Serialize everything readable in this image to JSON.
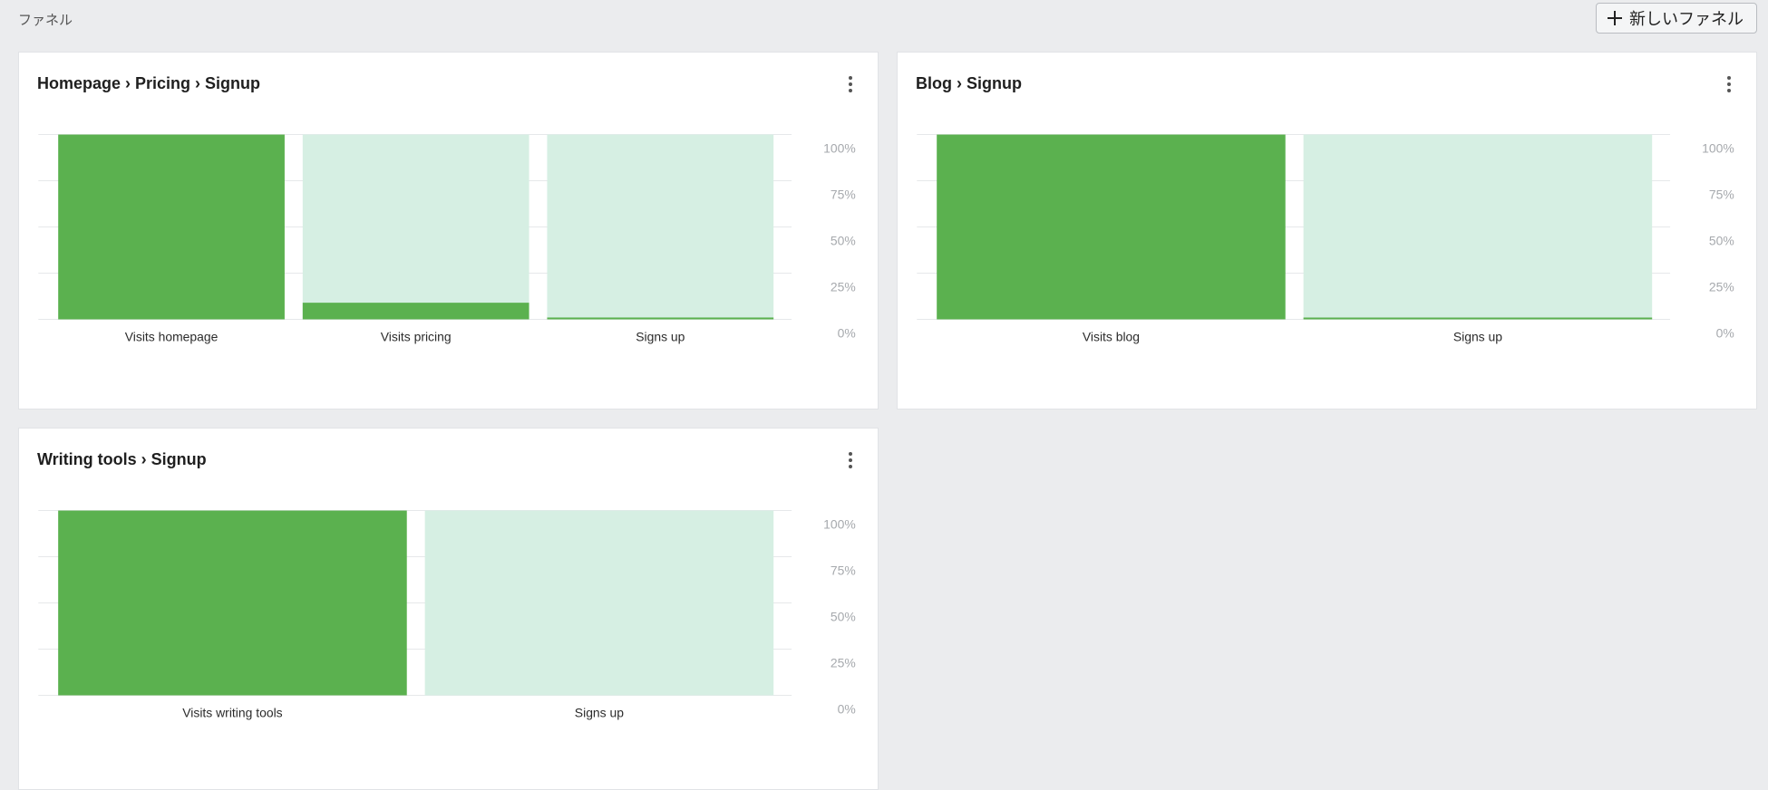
{
  "header": {
    "title": "ファネル",
    "new_button_label": "新しいファネル"
  },
  "funnels": [
    {
      "title": "Homepage › Pricing › Signup",
      "steps": [
        {
          "label": "Visits homepage",
          "value": 100
        },
        {
          "label": "Visits pricing",
          "value": 9
        },
        {
          "label": "Signs up",
          "value": 1
        }
      ]
    },
    {
      "title": "Blog › Signup",
      "steps": [
        {
          "label": "Visits blog",
          "value": 100
        },
        {
          "label": "Signs up",
          "value": 0.5
        }
      ]
    },
    {
      "title": "Writing tools › Signup",
      "steps": [
        {
          "label": "Visits writing tools",
          "value": 100
        },
        {
          "label": "Signs up",
          "value": 0
        }
      ]
    }
  ],
  "chart_data": [
    {
      "type": "bar",
      "title": "Homepage › Pricing › Signup",
      "categories": [
        "Visits homepage",
        "Visits pricing",
        "Signs up"
      ],
      "values": [
        100,
        9,
        1
      ],
      "ylim": [
        0,
        100
      ],
      "yticks": [
        "100%",
        "75%",
        "50%",
        "25%",
        "0%"
      ],
      "grid": true
    },
    {
      "type": "bar",
      "title": "Blog › Signup",
      "categories": [
        "Visits blog",
        "Signs up"
      ],
      "values": [
        100,
        0.5
      ],
      "ylim": [
        0,
        100
      ],
      "yticks": [
        "100%",
        "75%",
        "50%",
        "25%",
        "0%"
      ],
      "grid": true
    },
    {
      "type": "bar",
      "title": "Writing tools › Signup",
      "categories": [
        "Visits writing tools",
        "Signs up"
      ],
      "values": [
        100,
        0
      ],
      "ylim": [
        0,
        100
      ],
      "yticks": [
        "100%",
        "75%",
        "50%",
        "25%",
        "0%"
      ],
      "grid": true
    }
  ],
  "colors": {
    "bar": "#5bb14f",
    "bar_background": "#d6efe3",
    "page_background": "#ebecee"
  },
  "icons": {
    "new_button": "plus-icon",
    "card_menu": "kebab-icon"
  }
}
